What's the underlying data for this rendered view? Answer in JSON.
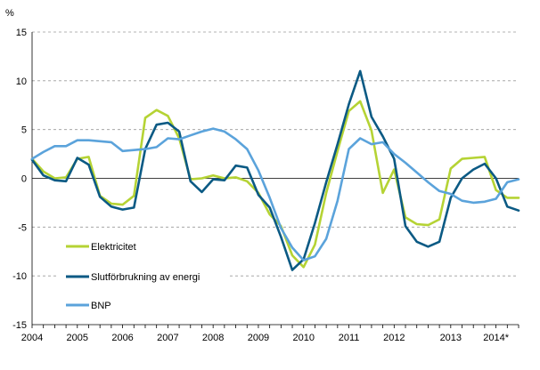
{
  "chart_data": {
    "type": "line",
    "title": "",
    "ylabel": "%",
    "xlabel": "",
    "ylim": [
      -15,
      15
    ],
    "yticks": [
      15,
      10,
      5,
      0,
      -5,
      -10,
      -15
    ],
    "ytick_labels": [
      "15",
      "10",
      "5",
      "0",
      "-5",
      "-10",
      "-15"
    ],
    "grid": "horizontal dashed",
    "legend_position": "lower-left",
    "xticks": [
      {
        "label": "2004",
        "q": 0
      },
      {
        "label": "2005",
        "q": 4
      },
      {
        "label": "2006",
        "q": 8
      },
      {
        "label": "2007",
        "q": 12
      },
      {
        "label": "2008",
        "q": 16
      },
      {
        "label": "2009",
        "q": 20
      },
      {
        "label": "2010",
        "q": 24
      },
      {
        "label": "2011",
        "q": 28
      },
      {
        "label": "2012",
        "q": 32
      },
      {
        "label": "2013",
        "q": 37
      },
      {
        "label": "2014*",
        "q": 41
      }
    ],
    "x": [
      0,
      1,
      2,
      3,
      4,
      5,
      6,
      7,
      8,
      9,
      10,
      11,
      12,
      13,
      14,
      15,
      16,
      17,
      18,
      19,
      20,
      21,
      22,
      23,
      24,
      25,
      26,
      27,
      28,
      29,
      30,
      31,
      32,
      33,
      34,
      35,
      36,
      37,
      38,
      39,
      40,
      41,
      42,
      43
    ],
    "series": [
      {
        "name": "Elektricitet",
        "color": "#b5d334",
        "values": [
          2.0,
          0.7,
          0.0,
          0.1,
          2.0,
          2.2,
          -1.8,
          -2.6,
          -2.7,
          -1.8,
          6.2,
          7.0,
          6.4,
          4.1,
          -0.1,
          0.0,
          0.3,
          0.0,
          0.1,
          -0.3,
          -1.5,
          -3.7,
          -4.9,
          -7.9,
          -9.1,
          -6.8,
          -1.5,
          2.8,
          6.9,
          7.9,
          4.9,
          -1.5,
          0.9,
          -4.0,
          -4.7,
          -4.8,
          -4.2,
          1.0,
          2.0,
          2.1,
          2.2,
          -1.2,
          -2.0,
          -2.0
        ]
      },
      {
        "name": "Slutförbrukning av energi",
        "color": "#0b5a84",
        "values": [
          1.9,
          0.3,
          -0.2,
          -0.3,
          2.1,
          1.4,
          -1.9,
          -2.9,
          -3.2,
          -3.0,
          3.0,
          5.5,
          5.7,
          4.8,
          -0.3,
          -1.4,
          -0.1,
          -0.2,
          1.3,
          1.1,
          -1.7,
          -3.0,
          -6.0,
          -9.4,
          -8.3,
          -4.6,
          -0.4,
          3.5,
          7.6,
          11.0,
          6.3,
          4.3,
          2.0,
          -4.9,
          -6.5,
          -7.0,
          -6.5,
          -2.0,
          0.0,
          0.9,
          1.5,
          0.0,
          -2.9,
          -3.3
        ]
      },
      {
        "name": "BNP",
        "color": "#5ba3db",
        "values": [
          2.0,
          2.7,
          3.3,
          3.3,
          3.9,
          3.9,
          3.8,
          3.7,
          2.8,
          2.9,
          3.0,
          3.2,
          4.1,
          4.0,
          4.4,
          4.8,
          5.1,
          4.8,
          4.0,
          3.0,
          0.8,
          -2.0,
          -5.1,
          -7.1,
          -8.4,
          -8.0,
          -6.2,
          -2.3,
          3.0,
          4.1,
          3.5,
          3.7,
          2.5,
          1.6,
          0.6,
          -0.4,
          -1.3,
          -1.6,
          -2.3,
          -2.5,
          -2.4,
          -2.1,
          -0.4,
          -0.1
        ]
      }
    ]
  },
  "colors": {
    "axis": "#000000",
    "grid": "#9a9a9a",
    "background": "#ffffff"
  }
}
